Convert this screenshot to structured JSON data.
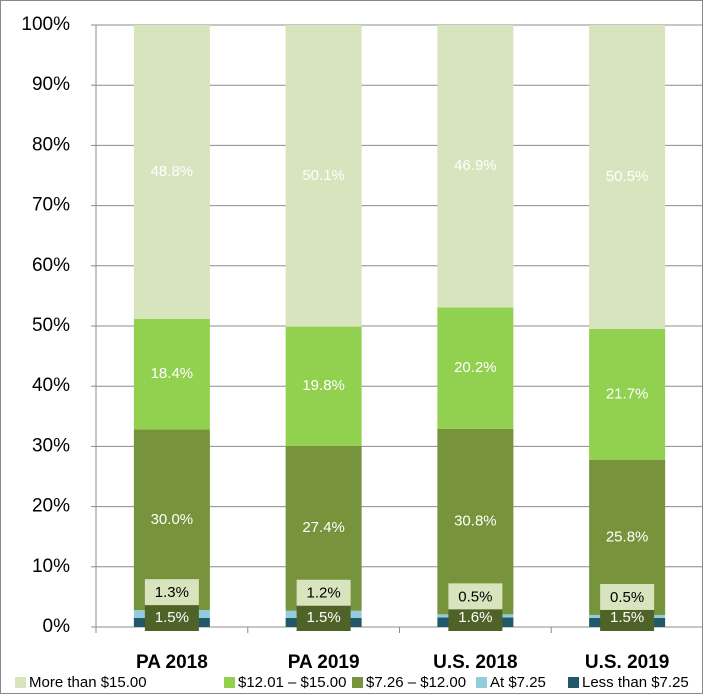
{
  "chart_data": {
    "type": "stacked_bar",
    "categories": [
      "PA 2018",
      "PA 2019",
      "U.S. 2018",
      "U.S. 2019"
    ],
    "series": [
      {
        "name": "Less than $7.25",
        "color": "#215968",
        "values": [
          1.5,
          1.5,
          1.6,
          1.5
        ],
        "value_labels": [
          "1.5%",
          "1.5%",
          "1.6%",
          "1.5%"
        ]
      },
      {
        "name": "At $7.25",
        "color": "#93cddd",
        "values": [
          1.3,
          1.2,
          0.5,
          0.5
        ],
        "value_labels": [
          "1.3%",
          "1.2%",
          "0.5%",
          "0.5%"
        ]
      },
      {
        "name": "$7.26 – $12.00",
        "color": "#77933c",
        "values": [
          30.0,
          27.4,
          30.8,
          25.8
        ],
        "value_labels": [
          "30.0%",
          "27.4%",
          "30.8%",
          "25.8%"
        ]
      },
      {
        "name": "$12.01 – $15.00",
        "color": "#92d050",
        "values": [
          18.4,
          19.8,
          20.2,
          21.7
        ],
        "value_labels": [
          "18.4%",
          "19.8%",
          "20.2%",
          "21.7%"
        ]
      },
      {
        "name": "More than $15.00",
        "color": "#d7e4bd",
        "values": [
          48.8,
          50.1,
          46.9,
          50.5
        ],
        "value_labels": [
          "48.8%",
          "50.1%",
          "46.9%",
          "50.5%"
        ]
      }
    ],
    "ylim": [
      0,
      100
    ],
    "yticks": [
      {
        "value": 0,
        "label": "0%"
      },
      {
        "value": 10,
        "label": "10%"
      },
      {
        "value": 20,
        "label": "20%"
      },
      {
        "value": 30,
        "label": "30%"
      },
      {
        "value": 40,
        "label": "40%"
      },
      {
        "value": 50,
        "label": "50%"
      },
      {
        "value": 60,
        "label": "60%"
      },
      {
        "value": 70,
        "label": "70%"
      },
      {
        "value": 80,
        "label": "80%"
      },
      {
        "value": 90,
        "label": "90%"
      },
      {
        "value": 100,
        "label": "100%"
      }
    ],
    "grid": true,
    "legend": "bottom"
  }
}
